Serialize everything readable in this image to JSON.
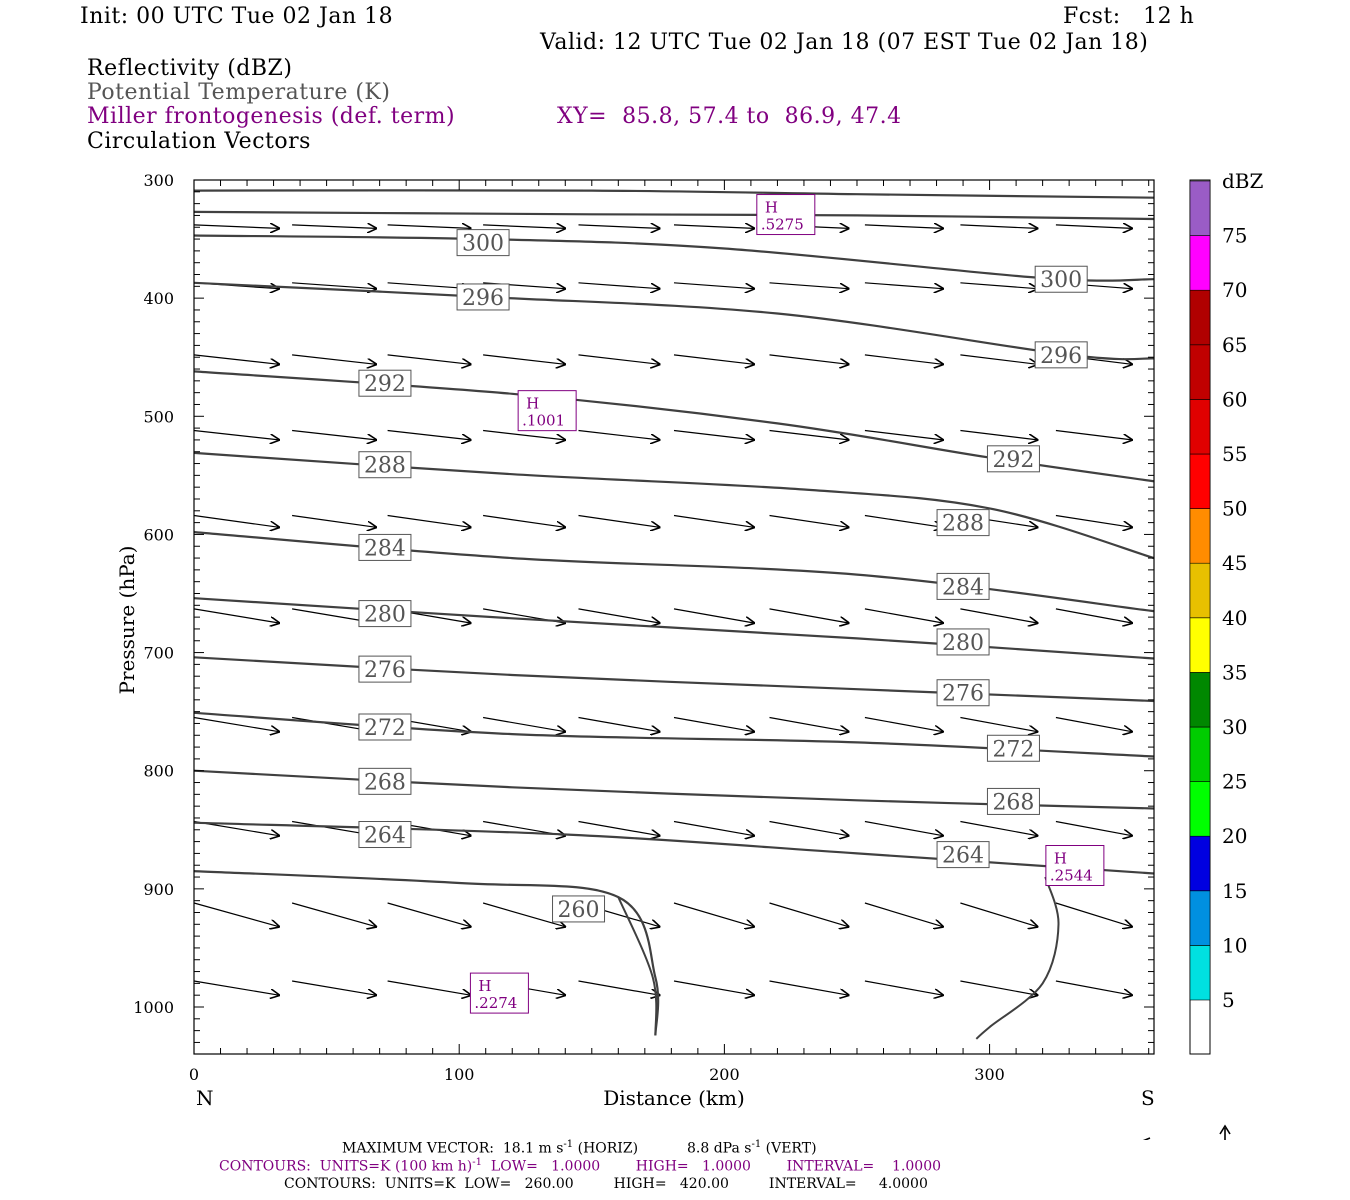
{
  "header": {
    "init": "Init: 00 UTC Tue 02 Jan 18",
    "fcst": "Fcst:   12 h",
    "valid": "Valid: 12 UTC Tue 02 Jan 18 (07 EST Tue 02 Jan 18)",
    "field1": "Reflectivity (dBZ)",
    "field2": "Potential Temperature (K)",
    "field3": "Miller frontogenesis (def. term)",
    "xy": "XY=  85.8, 57.4 to  86.9, 47.4",
    "field4": "Circulation Vectors"
  },
  "colors": {
    "contour": "#404040",
    "purple": "#800080",
    "frame": "#000000"
  },
  "chart_data": {
    "type": "line",
    "xlabel": "Distance (km)",
    "ylabel": "Pressure (hPa)",
    "x_range": [
      0,
      362
    ],
    "y_range": [
      300,
      1030
    ],
    "x_ticks": [
      "0",
      "100",
      "200",
      "300"
    ],
    "y_ticks": [
      "300",
      "400",
      "500",
      "600",
      "700",
      "800",
      "900",
      "1000"
    ],
    "x_left_label": "N",
    "x_right_label": "S",
    "isentropes": [
      {
        "label": "",
        "points": [
          [
            0,
            309
          ],
          [
            150,
            309
          ],
          [
            250,
            312
          ],
          [
            362,
            315
          ]
        ]
      },
      {
        "label": "",
        "points": [
          [
            0,
            327
          ],
          [
            150,
            329
          ],
          [
            250,
            330
          ],
          [
            362,
            333
          ]
        ]
      },
      {
        "label": "300",
        "points": [
          [
            0,
            347
          ],
          [
            110,
            350
          ],
          [
            200,
            358
          ],
          [
            320,
            383
          ],
          [
            362,
            384
          ]
        ]
      },
      {
        "label": "296",
        "points": [
          [
            0,
            387
          ],
          [
            110,
            399
          ],
          [
            220,
            413
          ],
          [
            330,
            448
          ],
          [
            362,
            451
          ]
        ]
      },
      {
        "label": "292",
        "points": [
          [
            0,
            462
          ],
          [
            120,
            481
          ],
          [
            220,
            506
          ],
          [
            300,
            535
          ],
          [
            362,
            555
          ]
        ]
      },
      {
        "label": "288",
        "points": [
          [
            0,
            531
          ],
          [
            120,
            549
          ],
          [
            230,
            562
          ],
          [
            300,
            578
          ],
          [
            362,
            620
          ]
        ]
      },
      {
        "label": "284",
        "points": [
          [
            0,
            598
          ],
          [
            120,
            620
          ],
          [
            250,
            634
          ],
          [
            362,
            665
          ]
        ]
      },
      {
        "label": "280",
        "points": [
          [
            0,
            654
          ],
          [
            120,
            671
          ],
          [
            250,
            688
          ],
          [
            362,
            705
          ]
        ]
      },
      {
        "label": "276",
        "points": [
          [
            0,
            704
          ],
          [
            120,
            719
          ],
          [
            250,
            731
          ],
          [
            362,
            741
          ]
        ]
      },
      {
        "label": "272",
        "points": [
          [
            0,
            751
          ],
          [
            120,
            769
          ],
          [
            250,
            776
          ],
          [
            362,
            788
          ]
        ]
      },
      {
        "label": "268",
        "points": [
          [
            0,
            800
          ],
          [
            120,
            814
          ],
          [
            250,
            825
          ],
          [
            362,
            832
          ]
        ]
      },
      {
        "label": "264",
        "points": [
          [
            0,
            844
          ],
          [
            140,
            854
          ],
          [
            250,
            870
          ],
          [
            362,
            887
          ]
        ]
      },
      {
        "label": "260",
        "points": [
          [
            0,
            885
          ],
          [
            100,
            895
          ],
          [
            160,
            907
          ],
          [
            174,
            975
          ],
          [
            174,
            1024
          ]
        ]
      }
    ],
    "isentrope_labels": [
      {
        "label": "300",
        "at": [
          109,
          353
        ]
      },
      {
        "label": "300",
        "at": [
          327,
          384
        ]
      },
      {
        "label": "296",
        "at": [
          109,
          399
        ]
      },
      {
        "label": "296",
        "at": [
          327,
          448
        ]
      },
      {
        "label": "292",
        "at": [
          72,
          472
        ]
      },
      {
        "label": "292",
        "at": [
          309,
          536
        ]
      },
      {
        "label": "288",
        "at": [
          72,
          541
        ]
      },
      {
        "label": "288",
        "at": [
          290,
          590
        ]
      },
      {
        "label": "284",
        "at": [
          72,
          611
        ]
      },
      {
        "label": "284",
        "at": [
          290,
          644
        ]
      },
      {
        "label": "280",
        "at": [
          72,
          667
        ]
      },
      {
        "label": "280",
        "at": [
          290,
          691
        ]
      },
      {
        "label": "276",
        "at": [
          72,
          714
        ]
      },
      {
        "label": "276",
        "at": [
          290,
          734
        ]
      },
      {
        "label": "272",
        "at": [
          72,
          763
        ]
      },
      {
        "label": "272",
        "at": [
          309,
          781
        ]
      },
      {
        "label": "268",
        "at": [
          72,
          809
        ]
      },
      {
        "label": "268",
        "at": [
          309,
          826
        ]
      },
      {
        "label": "264",
        "at": [
          72,
          854
        ]
      },
      {
        "label": "264",
        "at": [
          290,
          871
        ]
      },
      {
        "label": "260",
        "at": [
          145,
          917
        ]
      }
    ],
    "frontogenesis_maxima": [
      {
        "label": "H",
        "value": ".5275",
        "at": [
          216,
          325
        ]
      },
      {
        "label": "H",
        "value": ".1001",
        "at": [
          126,
          491
        ]
      },
      {
        "label": "H",
        "value": ".2544",
        "at": [
          325,
          876
        ]
      },
      {
        "label": "H",
        "value": ".2274",
        "at": [
          108,
          984
        ]
      }
    ],
    "frontogenesis_contours": [
      {
        "points": [
          [
            160,
            907
          ],
          [
            173,
            975
          ],
          [
            174,
            1024
          ]
        ]
      },
      {
        "points": [
          [
            321,
            890
          ],
          [
            326,
            930
          ],
          [
            320,
            980
          ],
          [
            300,
            1017
          ],
          [
            295,
            1027
          ]
        ]
      }
    ],
    "vector_rows": [
      {
        "p": 338,
        "dp": 3,
        "xs": [
          0,
          37,
          73,
          109,
          145,
          181,
          217,
          253,
          289,
          325
        ]
      },
      {
        "p": 387,
        "dp": 5,
        "xs": [
          0,
          37,
          73,
          109,
          145,
          181,
          217,
          253,
          289,
          325
        ]
      },
      {
        "p": 448,
        "dp": 8,
        "xs": [
          0,
          37,
          73,
          109,
          145,
          181,
          217,
          253,
          289,
          325
        ]
      },
      {
        "p": 512,
        "dp": 8,
        "xs": [
          0,
          37,
          73,
          109,
          145,
          181,
          217,
          253,
          289,
          325
        ]
      },
      {
        "p": 584,
        "dp": 10,
        "xs": [
          0,
          37,
          73,
          109,
          145,
          181,
          217,
          253,
          289,
          325
        ]
      },
      {
        "p": 663,
        "dp": 12,
        "xs": [
          0,
          37,
          73,
          109,
          145,
          181,
          217,
          253,
          289,
          325
        ]
      },
      {
        "p": 755,
        "dp": 12,
        "xs": [
          0,
          37,
          73,
          109,
          145,
          181,
          217,
          253,
          289,
          325
        ]
      },
      {
        "p": 843,
        "dp": 12,
        "xs": [
          0,
          37,
          73,
          109,
          145,
          181,
          217,
          253,
          289,
          325
        ]
      },
      {
        "p": 912,
        "dp": 20,
        "xs": [
          0,
          37,
          73,
          109,
          145,
          181,
          217,
          253,
          289,
          325
        ]
      },
      {
        "p": 978,
        "dp": 12,
        "xs": [
          0,
          37,
          73,
          109,
          145,
          181,
          217,
          253,
          289,
          325
        ]
      }
    ],
    "colorbar": {
      "unit": "dBZ",
      "levels": [
        {
          "label": "5",
          "color": "#00e0e0"
        },
        {
          "label": "10",
          "color": "#0090e0"
        },
        {
          "label": "15",
          "color": "#0000e0"
        },
        {
          "label": "20",
          "color": "#00ff00"
        },
        {
          "label": "25",
          "color": "#00cc00"
        },
        {
          "label": "30",
          "color": "#008800"
        },
        {
          "label": "35",
          "color": "#ffff00"
        },
        {
          "label": "40",
          "color": "#e8c000"
        },
        {
          "label": "45",
          "color": "#ff8c00"
        },
        {
          "label": "50",
          "color": "#ff0000"
        },
        {
          "label": "55",
          "color": "#e00000"
        },
        {
          "label": "60",
          "color": "#c00000"
        },
        {
          "label": "65",
          "color": "#b00000"
        },
        {
          "label": "70",
          "color": "#ff00ff"
        },
        {
          "label": "75",
          "color": "#9a5cc6"
        }
      ]
    }
  },
  "footer": {
    "line1": "MAXIMUM VECTOR:  18.1 m s",
    "line1_sup": "-1",
    "line1_mid": " (HORIZ)           8.8 dPa s",
    "line1_sup2": "-1",
    "line1_end": " (VERT)",
    "line2": "CONTOURS:  UNITS=K (100 km h)",
    "line2_sup": "-1",
    "line2_end": "  LOW=   1.0000        HIGH=   1.0000        INTERVAL=    1.0000",
    "line3": "CONTOURS:  UNITS=K  LOW=   260.00         HIGH=   420.00         INTERVAL=     4.0000"
  }
}
